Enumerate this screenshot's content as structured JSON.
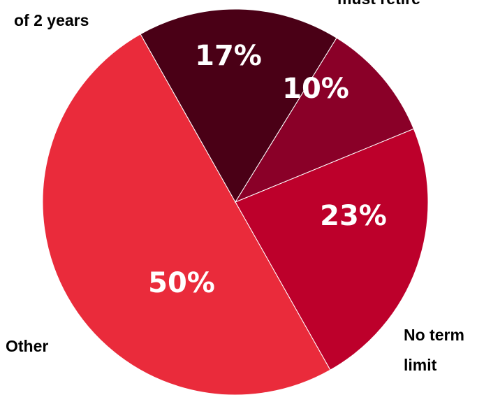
{
  "chart_data": {
    "type": "pie",
    "slices": [
      {
        "label": "No term limit",
        "value": 23,
        "display": "23%",
        "color": "#bd002b"
      },
      {
        "label": "Other",
        "value": 50,
        "display": "50%",
        "color": "#ea2b3b"
      },
      {
        "label": "... of 2 years",
        "value": 17,
        "display": "17%",
        "color": "#4a0016"
      },
      {
        "label": "... must retire",
        "value": 10,
        "display": "10%",
        "color": "#8a0028"
      }
    ],
    "category_labels": {
      "no_term_limit": [
        "No term",
        "limit"
      ],
      "other": [
        "Other"
      ],
      "two_years": [
        "of 2 years"
      ],
      "must_retire": [
        "must retire"
      ]
    }
  }
}
